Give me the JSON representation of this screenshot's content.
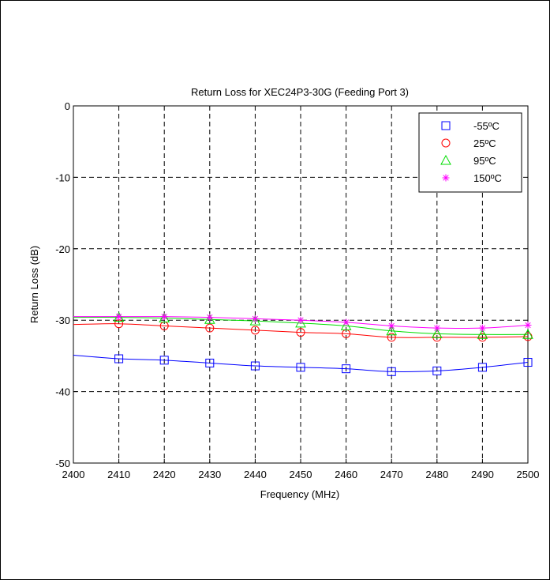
{
  "chart_data": {
    "type": "line",
    "title": "Return Loss for XEC24P3-30G (Feeding Port 3)",
    "xlabel": "Frequency (MHz)",
    "ylabel": "Return Loss (dB)",
    "xlim": [
      2400,
      2500
    ],
    "ylim": [
      -50,
      0
    ],
    "xticks": [
      "2400",
      "2410",
      "2420",
      "2430",
      "2440",
      "2450",
      "2460",
      "2470",
      "2480",
      "2490",
      "2500"
    ],
    "yticks": [
      "0",
      "-10",
      "-20",
      "-30",
      "-40",
      "-50"
    ],
    "grid": true,
    "legend_position": "top-right",
    "x": [
      2400,
      2410,
      2420,
      2430,
      2440,
      2450,
      2460,
      2470,
      2480,
      2490,
      2500
    ],
    "series": [
      {
        "name": "-55ºC",
        "color": "#0000ff",
        "marker": "square",
        "values": [
          -34.9,
          -35.4,
          -35.6,
          -36.0,
          -36.4,
          -36.6,
          -36.8,
          -37.2,
          -37.1,
          -36.6,
          -35.9
        ]
      },
      {
        "name": "25ºC",
        "color": "#ff0000",
        "marker": "circle",
        "values": [
          -30.6,
          -30.5,
          -30.8,
          -31.1,
          -31.4,
          -31.7,
          -31.9,
          -32.4,
          -32.4,
          -32.4,
          -32.3
        ]
      },
      {
        "name": "95ºC",
        "color": "#00dd00",
        "marker": "triangle",
        "values": [
          -29.6,
          -29.6,
          -29.7,
          -29.9,
          -30.1,
          -30.4,
          -30.8,
          -31.5,
          -31.9,
          -32.0,
          -32.0
        ]
      },
      {
        "name": "150ºC",
        "color": "#ff00ff",
        "marker": "asterisk",
        "values": [
          -29.5,
          -29.5,
          -29.5,
          -29.6,
          -29.8,
          -30.0,
          -30.3,
          -30.8,
          -31.1,
          -31.1,
          -30.7
        ]
      }
    ]
  }
}
